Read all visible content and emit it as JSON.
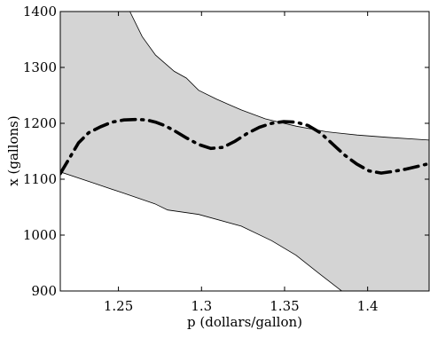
{
  "chart_data": {
    "type": "line",
    "title": "",
    "xlabel": "p (dollars/gallon)",
    "ylabel": "x (gallons)",
    "xlim": [
      1.215,
      1.437
    ],
    "ylim": [
      900,
      1400
    ],
    "xticks": [
      1.25,
      1.3,
      1.35,
      1.4
    ],
    "yticks": [
      900,
      1000,
      1100,
      1200,
      1300,
      1400
    ],
    "xtick_labels": [
      "1.25",
      "1.3",
      "1.35",
      "1.4"
    ],
    "ytick_labels": [
      "900",
      "1000",
      "1100",
      "1200",
      "1300",
      "1400"
    ],
    "grid": false,
    "band": {
      "fill_color": "#d4d4d4",
      "upper": [
        [
          1.215,
          1400
        ],
        [
          1.2569,
          1400
        ],
        [
          1.2643,
          1355
        ],
        [
          1.2723,
          1322
        ],
        [
          1.2836,
          1293
        ],
        [
          1.2909,
          1281
        ],
        [
          1.2983,
          1259
        ],
        [
          1.3092,
          1243
        ],
        [
          1.3239,
          1224
        ],
        [
          1.3385,
          1208
        ],
        [
          1.3569,
          1195
        ],
        [
          1.3753,
          1185
        ],
        [
          1.3936,
          1179
        ],
        [
          1.4119,
          1175
        ],
        [
          1.437,
          1170
        ]
      ],
      "lower": [
        [
          1.215,
          1113
        ],
        [
          1.2351,
          1093
        ],
        [
          1.2532,
          1075
        ],
        [
          1.2719,
          1056
        ],
        [
          1.2796,
          1045
        ],
        [
          1.2983,
          1037
        ],
        [
          1.3239,
          1016
        ],
        [
          1.3422,
          990
        ],
        [
          1.3569,
          964
        ],
        [
          1.3713,
          930
        ],
        [
          1.3844,
          900
        ],
        [
          1.437,
          900
        ]
      ]
    },
    "series": [
      {
        "color": "#000000",
        "line_style": "dash-dot",
        "points": [
          [
            1.215,
            1110
          ],
          [
            1.221,
            1140
          ],
          [
            1.226,
            1165
          ],
          [
            1.232,
            1183
          ],
          [
            1.2394,
            1194
          ],
          [
            1.246,
            1202
          ],
          [
            1.2533,
            1206
          ],
          [
            1.2612,
            1207
          ],
          [
            1.2669,
            1206
          ],
          [
            1.2724,
            1202
          ],
          [
            1.2778,
            1196
          ],
          [
            1.2836,
            1187
          ],
          [
            1.2909,
            1174
          ],
          [
            1.2983,
            1162
          ],
          [
            1.3056,
            1155
          ],
          [
            1.3129,
            1157
          ],
          [
            1.3202,
            1168
          ],
          [
            1.3276,
            1182
          ],
          [
            1.3349,
            1193
          ],
          [
            1.3422,
            1200
          ],
          [
            1.3495,
            1203
          ],
          [
            1.3569,
            1202
          ],
          [
            1.3642,
            1196
          ],
          [
            1.3715,
            1183
          ],
          [
            1.3789,
            1163
          ],
          [
            1.3862,
            1143
          ],
          [
            1.3935,
            1127
          ],
          [
            1.4008,
            1115
          ],
          [
            1.4082,
            1111
          ],
          [
            1.4155,
            1114
          ],
          [
            1.4228,
            1118
          ],
          [
            1.4302,
            1123
          ],
          [
            1.437,
            1128
          ]
        ]
      }
    ]
  }
}
